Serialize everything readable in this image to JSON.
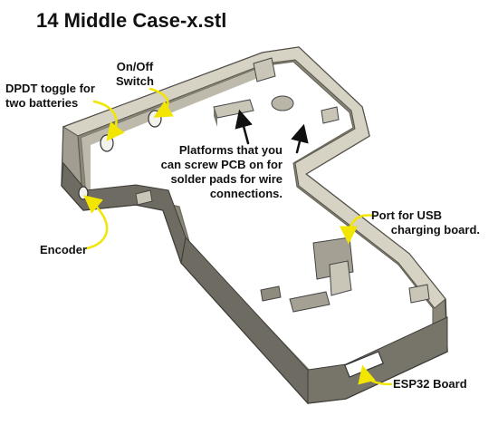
{
  "title": "14 Middle Case-x.stl",
  "labels": {
    "dpdt_line1": "DPDT toggle for",
    "dpdt_line2": "two batteries",
    "onoff_line1": "On/Off",
    "onoff_line2": "Switch",
    "platforms_line1": "Platforms that you",
    "platforms_line2": "can screw PCB  on for",
    "platforms_line3": "solder pads for wire",
    "platforms_line4": "connections.",
    "encoder": "Encoder",
    "usb_line1": "Port for USB",
    "usb_line2": "charging board.",
    "esp32": "ESP32 Board"
  },
  "colors": {
    "case_top": "#d6d2c4",
    "case_wall": "#8a8678",
    "case_dark": "#5e5b52",
    "arrow_yellow": "#f2e600",
    "arrow_black": "#111111"
  }
}
